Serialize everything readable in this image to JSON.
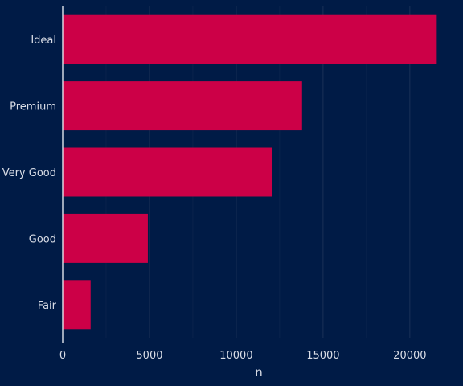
{
  "colors": {
    "background": "#001b46",
    "bar": "#cc0047",
    "grid": "#1a3157",
    "axis": "#e0e4ec",
    "text": "#d9dde6"
  },
  "chart_data": {
    "type": "bar",
    "orientation": "horizontal",
    "categories": [
      "Ideal",
      "Premium",
      "Very Good",
      "Good",
      "Fair"
    ],
    "values": [
      21551,
      13791,
      12082,
      4906,
      1610
    ],
    "xlabel": "n",
    "ylabel": "",
    "xlim": [
      0,
      22600
    ],
    "xticks": [
      0,
      5000,
      10000,
      15000,
      20000
    ],
    "xtick_labels": [
      "0",
      "5000",
      "10000",
      "15000",
      "20000"
    ],
    "grid": "vertical major",
    "legend": "none"
  }
}
